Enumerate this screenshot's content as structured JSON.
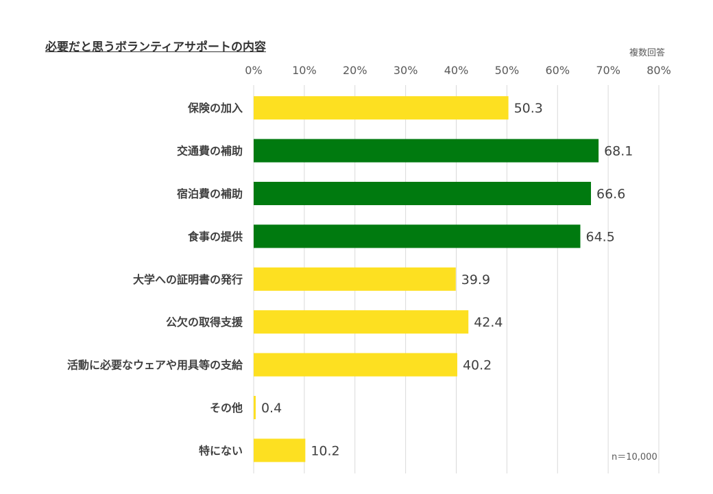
{
  "chart_data": {
    "type": "bar",
    "orientation": "horizontal",
    "title": "必要だと思うボランティアサポートの内容",
    "note": "複数回答",
    "sample_note": "n＝10,000",
    "categories": [
      "保険の加入",
      "交通費の補助",
      "宿泊費の補助",
      "食事の提供",
      "大学への証明書の発行",
      "公欠の取得支援",
      "活動に必要なウェアや用具等の支給",
      "その他",
      "特にない"
    ],
    "values": [
      50.3,
      68.1,
      66.6,
      64.5,
      39.9,
      42.4,
      40.2,
      0.4,
      10.2
    ],
    "value_labels": [
      "50.3",
      "68.1",
      "66.6",
      "64.5",
      "39.9",
      "42.4",
      "40.2",
      "0.4",
      "10.2"
    ],
    "bar_colors": [
      "#fde021",
      "#007a0f",
      "#007a0f",
      "#007a0f",
      "#fde021",
      "#fde021",
      "#fde021",
      "#fde021",
      "#fde021"
    ],
    "x_ticks": [
      "0%",
      "10%",
      "20%",
      "30%",
      "40%",
      "50%",
      "60%",
      "70%",
      "80%"
    ],
    "xlim": [
      0,
      80
    ],
    "x_axis_position": "top",
    "grid": true,
    "gridline_color": "#d9d9d9"
  }
}
